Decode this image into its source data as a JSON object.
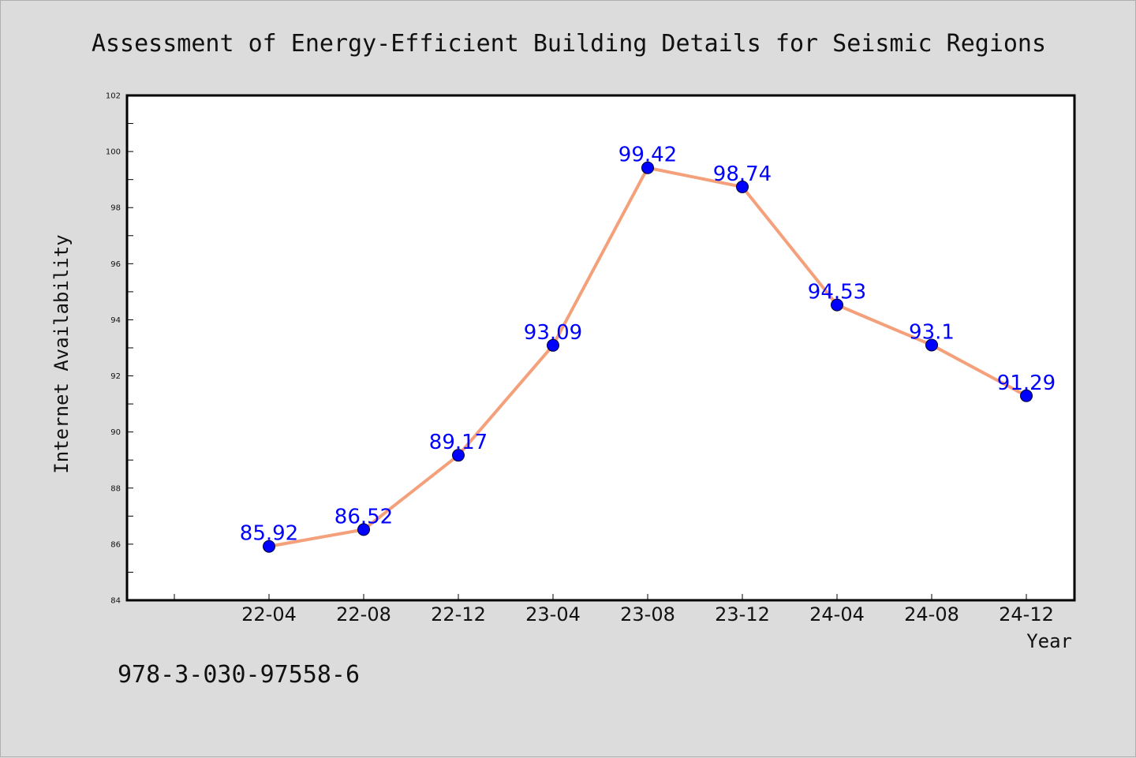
{
  "chart_data": {
    "type": "line",
    "title": "Assessment of Energy-Efficient Building Details for Seismic Regions",
    "xlabel": "Year",
    "ylabel": "Internet Availability",
    "categories": [
      "22-04",
      "22-08",
      "22-12",
      "23-04",
      "23-08",
      "23-12",
      "24-04",
      "24-08",
      "24-12"
    ],
    "values": [
      85.92,
      86.52,
      89.17,
      93.09,
      99.42,
      98.74,
      94.53,
      93.1,
      91.29
    ],
    "data_labels": [
      "85.92",
      "86.52",
      "89.17",
      "93.09",
      "99.42",
      "98.74",
      "94.53",
      "93.1",
      "91.29"
    ],
    "ylim": [
      84,
      102
    ],
    "yticks": [
      "84",
      "86",
      "88",
      "90",
      "92",
      "94",
      "96",
      "98",
      "100",
      "102"
    ],
    "line_color": "#f4a07a",
    "marker_color": "#0000ff",
    "label_color": "#0000ff",
    "grid": false,
    "legend": "none"
  },
  "footer": {
    "isbn": "978-3-030-97558-6"
  }
}
